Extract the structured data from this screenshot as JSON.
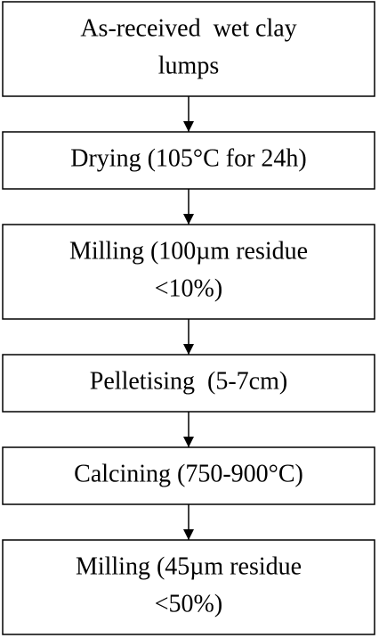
{
  "nodes": [
    {
      "lines": [
        "As-received  wet clay",
        "lumps"
      ]
    },
    {
      "lines": [
        "Drying (105°C for 24h)"
      ]
    },
    {
      "lines": [
        "Milling (100µm residue",
        "<10%)"
      ]
    },
    {
      "lines": [
        "Pelletising  (5-7cm)"
      ]
    },
    {
      "lines": [
        "Calcining (750-900°C)"
      ]
    },
    {
      "lines": [
        "Milling (45µm residue",
        "<50%)"
      ]
    }
  ]
}
